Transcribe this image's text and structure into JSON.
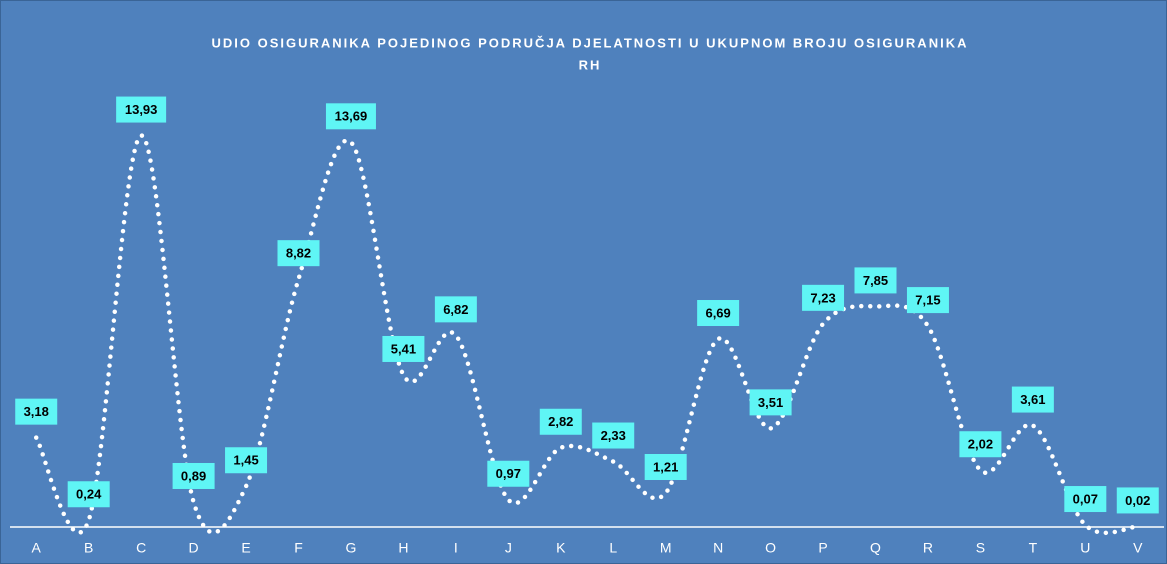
{
  "chart_data": {
    "type": "line",
    "title": [
      "UDIO OSIGURANIKA POJEDINOG PODRUČJA DJELATNOSTI U UKUPNOM BROJU OSIGURANIKA",
      "RH"
    ],
    "categories": [
      "A",
      "B",
      "C",
      "D",
      "E",
      "F",
      "G",
      "H",
      "I",
      "J",
      "K",
      "L",
      "M",
      "N",
      "O",
      "P",
      "Q",
      "R",
      "S",
      "T",
      "U",
      "V"
    ],
    "series": [
      {
        "color": "#ffffff",
        "values": [
          3.18,
          0.24,
          13.93,
          0.89,
          1.45,
          8.82,
          13.69,
          5.41,
          6.82,
          0.97,
          2.82,
          2.33,
          1.21,
          6.69,
          3.51,
          7.23,
          7.85,
          7.15,
          2.02,
          3.61,
          0.07,
          0.02
        ],
        "value_labels": [
          "3,18",
          "0,24",
          "13,93",
          "0,89",
          "1,45",
          "8,82",
          "13,69",
          "5,41",
          "6,82",
          "0,97",
          "2,82",
          "2,33",
          "1,21",
          "6,69",
          "3,51",
          "7,23",
          "7,85",
          "7,15",
          "2,02",
          "3,61",
          "0,07",
          "0,02"
        ]
      }
    ]
  }
}
